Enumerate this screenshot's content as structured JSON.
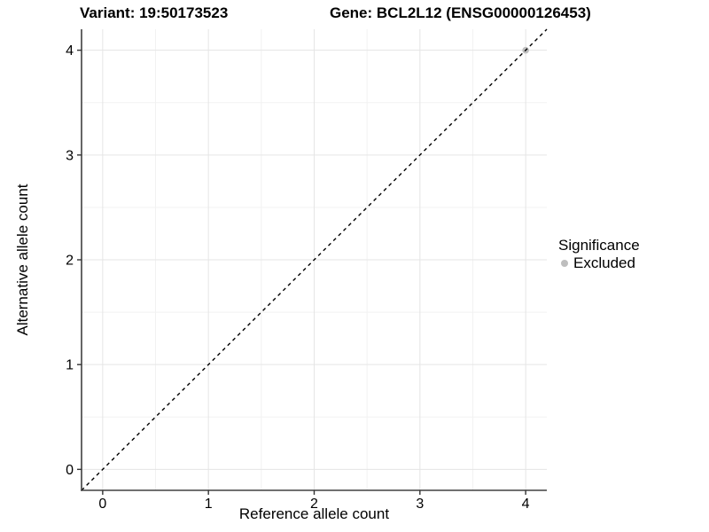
{
  "chart_data": {
    "type": "scatter",
    "titles": {
      "left": "Variant: 19:50173523",
      "right": "Gene: BCL2L12 (ENSG00000126453)"
    },
    "xlabel": "Reference allele count",
    "ylabel": "Alternative allele count",
    "xlim": [
      -0.2,
      4.2
    ],
    "ylim": [
      -0.2,
      4.2
    ],
    "xticks": [
      0,
      1,
      2,
      3,
      4
    ],
    "yticks": [
      0,
      1,
      2,
      3,
      4
    ],
    "grid": true,
    "legend": {
      "title": "Significance",
      "position": "right",
      "items": [
        {
          "label": "Excluded",
          "color": "#bebebe"
        }
      ]
    },
    "series": [
      {
        "name": "Excluded",
        "color": "#bebebe",
        "point_radius": 3.8,
        "points": [
          {
            "x": 4,
            "y": 4
          }
        ]
      }
    ],
    "reference_line": {
      "style": "dashed",
      "slope": 1,
      "intercept": 0,
      "color": "#000000"
    },
    "colors": {
      "grid_major": "#e5e5e5",
      "grid_minor": "#f2f2f2",
      "axis_line": "#404040",
      "tick": "#333333",
      "text": "#000000",
      "background": "#ffffff"
    }
  }
}
